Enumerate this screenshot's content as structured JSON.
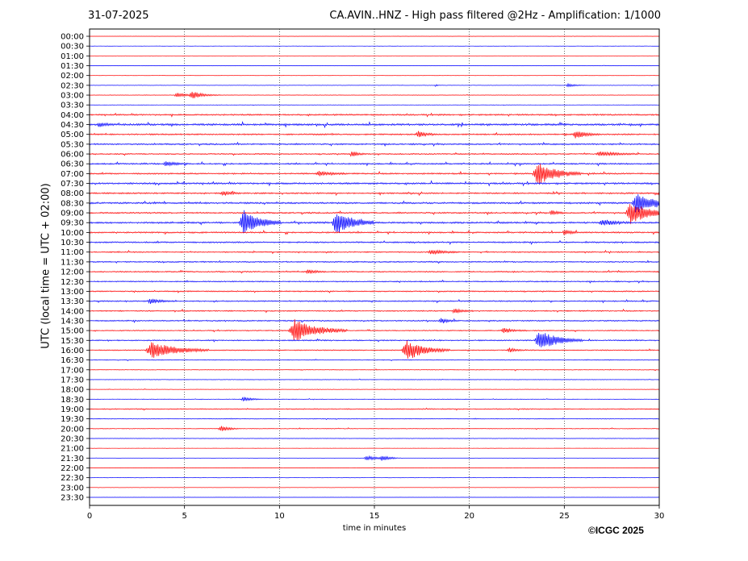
{
  "header": {
    "date": "31-07-2025",
    "title": "CA.AVIN..HNZ - High pass filtered @2Hz - Amplification: 1/1000"
  },
  "footer": {
    "copyright": "©ICGC 2025"
  },
  "chart_data": {
    "type": "line",
    "title": "CA.AVIN..HNZ - High pass filtered @2Hz - Amplification: 1/1000",
    "xlabel": "time in minutes",
    "ylabel": "UTC (local time = UTC + 02:00)",
    "xlim": [
      0,
      30
    ],
    "x_ticks": [
      0,
      5,
      10,
      15,
      20,
      25,
      30
    ],
    "vertical_gridlines": [
      5,
      10,
      15,
      20,
      25
    ],
    "grid_style": "dotted",
    "row_labels": [
      "00:00",
      "00:30",
      "01:00",
      "01:30",
      "02:00",
      "02:30",
      "03:00",
      "03:30",
      "04:00",
      "04:30",
      "05:00",
      "05:30",
      "06:00",
      "06:30",
      "07:00",
      "07:30",
      "08:00",
      "08:30",
      "09:00",
      "09:30",
      "10:00",
      "10:30",
      "11:00",
      "11:30",
      "12:00",
      "12:30",
      "13:00",
      "13:30",
      "14:00",
      "14:30",
      "15:00",
      "15:30",
      "16:00",
      "16:30",
      "17:00",
      "17:30",
      "18:00",
      "18:30",
      "19:00",
      "19:30",
      "20:00",
      "20:30",
      "21:00",
      "21:30",
      "22:00",
      "22:30",
      "23:00",
      "23:30"
    ],
    "row_colors": [
      "#ff0000",
      "#0000ff"
    ],
    "row_noise": [
      0.1,
      0.1,
      0.15,
      0.15,
      0.1,
      0.2,
      0.2,
      0.15,
      0.6,
      0.8,
      0.6,
      0.6,
      0.5,
      0.6,
      0.6,
      0.7,
      0.6,
      0.7,
      0.6,
      0.7,
      0.6,
      0.6,
      0.5,
      0.5,
      0.5,
      0.5,
      0.5,
      0.5,
      0.5,
      0.5,
      0.4,
      0.5,
      0.4,
      0.3,
      0.3,
      0.2,
      0.2,
      0.2,
      0.4,
      0.3,
      0.3,
      0.2,
      0.1,
      0.1,
      0.1,
      0.1,
      0.1,
      0.1
    ],
    "events": [
      {
        "row": 5,
        "minute": 18.2,
        "amp": 1.5,
        "dur": 0.1
      },
      {
        "row": 5,
        "minute": 25.2,
        "amp": 2,
        "dur": 0.4
      },
      {
        "row": 6,
        "minute": 4.6,
        "amp": 3,
        "dur": 0.5
      },
      {
        "row": 6,
        "minute": 5.4,
        "amp": 4,
        "dur": 0.6
      },
      {
        "row": 9,
        "minute": 0.5,
        "amp": 3,
        "dur": 0.3
      },
      {
        "row": 10,
        "minute": 17.3,
        "amp": 4,
        "dur": 0.4
      },
      {
        "row": 10,
        "minute": 25.6,
        "amp": 5,
        "dur": 0.5
      },
      {
        "row": 12,
        "minute": 13.8,
        "amp": 4,
        "dur": 0.3
      },
      {
        "row": 12,
        "minute": 26.9,
        "amp": 3,
        "dur": 0.8
      },
      {
        "row": 13,
        "minute": 4.0,
        "amp": 3,
        "dur": 0.5
      },
      {
        "row": 14,
        "minute": 12.1,
        "amp": 3,
        "dur": 0.6
      },
      {
        "row": 14,
        "minute": 23.6,
        "amp": 14,
        "dur": 0.9
      },
      {
        "row": 16,
        "minute": 7.0,
        "amp": 3,
        "dur": 0.4
      },
      {
        "row": 16,
        "minute": 30.0,
        "amp": 4,
        "dur": 0.2
      },
      {
        "row": 17,
        "minute": 28.8,
        "amp": 14,
        "dur": 0.8
      },
      {
        "row": 18,
        "minute": 28.5,
        "amp": 14,
        "dur": 0.9
      },
      {
        "row": 18,
        "minute": 24.3,
        "amp": 3,
        "dur": 0.3
      },
      {
        "row": 19,
        "minute": 8.1,
        "amp": 16,
        "dur": 0.8
      },
      {
        "row": 19,
        "minute": 13.0,
        "amp": 15,
        "dur": 0.8
      },
      {
        "row": 19,
        "minute": 27.0,
        "amp": 4,
        "dur": 0.6
      },
      {
        "row": 20,
        "minute": 25.0,
        "amp": 4,
        "dur": 0.3
      },
      {
        "row": 22,
        "minute": 18.0,
        "amp": 3,
        "dur": 0.6
      },
      {
        "row": 24,
        "minute": 11.5,
        "amp": 3,
        "dur": 0.4
      },
      {
        "row": 27,
        "minute": 3.2,
        "amp": 3,
        "dur": 0.5
      },
      {
        "row": 28,
        "minute": 19.2,
        "amp": 3,
        "dur": 0.4
      },
      {
        "row": 29,
        "minute": 18.5,
        "amp": 3,
        "dur": 0.4
      },
      {
        "row": 30,
        "minute": 10.8,
        "amp": 14,
        "dur": 1.1
      },
      {
        "row": 30,
        "minute": 21.8,
        "amp": 3,
        "dur": 0.5
      },
      {
        "row": 31,
        "minute": 23.7,
        "amp": 13,
        "dur": 0.9
      },
      {
        "row": 32,
        "minute": 3.3,
        "amp": 11,
        "dur": 1.2
      },
      {
        "row": 32,
        "minute": 16.7,
        "amp": 13,
        "dur": 0.9
      },
      {
        "row": 32,
        "minute": 22.1,
        "amp": 3,
        "dur": 0.4
      },
      {
        "row": 37,
        "minute": 8.1,
        "amp": 3,
        "dur": 0.4
      },
      {
        "row": 40,
        "minute": 6.9,
        "amp": 4,
        "dur": 0.4
      },
      {
        "row": 43,
        "minute": 14.6,
        "amp": 3,
        "dur": 0.6
      },
      {
        "row": 43,
        "minute": 15.4,
        "amp": 3,
        "dur": 0.4
      }
    ]
  }
}
